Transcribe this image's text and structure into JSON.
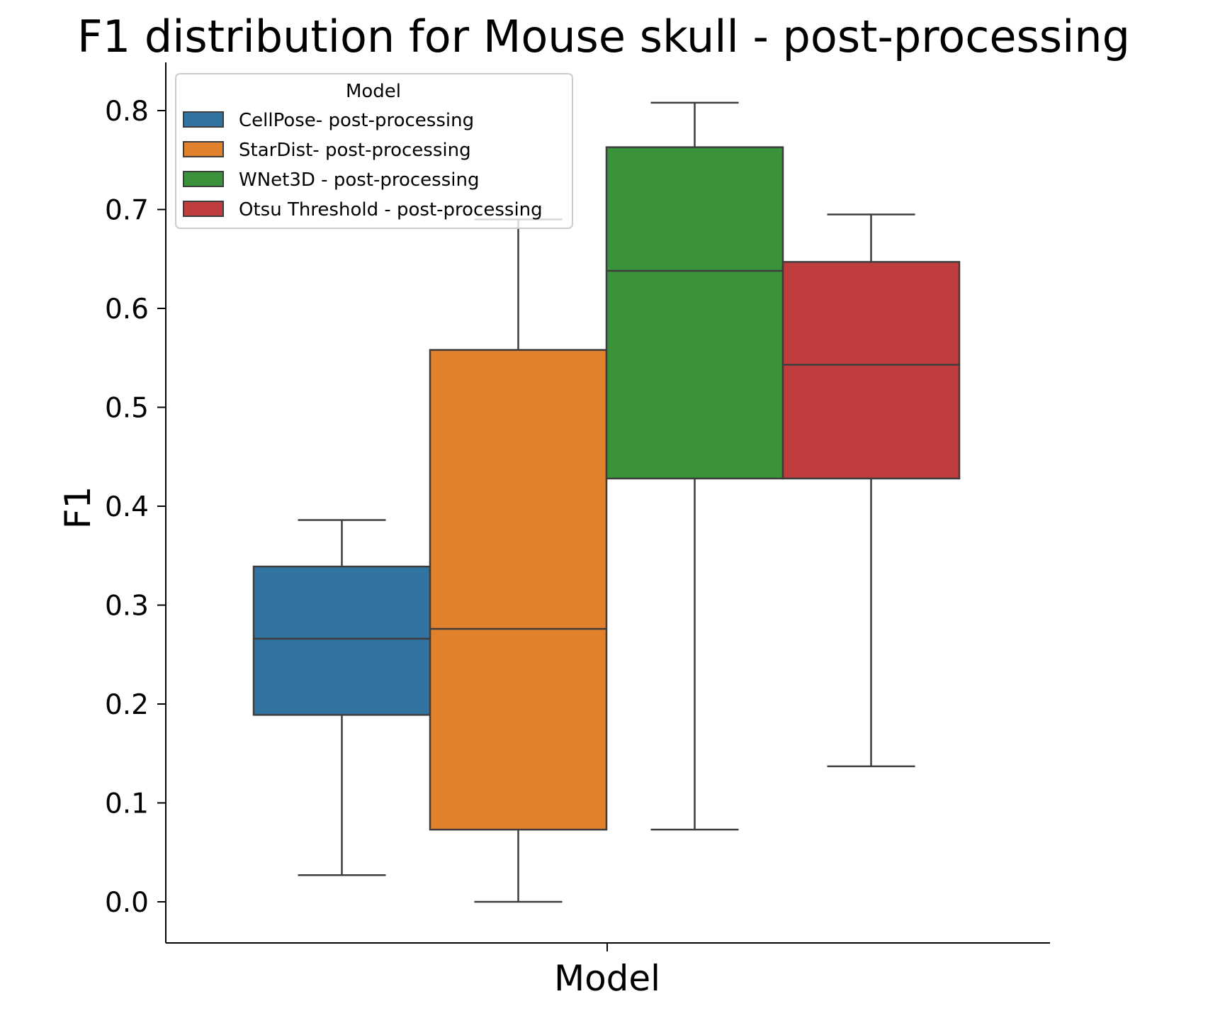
{
  "chart_data": {
    "type": "box",
    "title": "F1 distribution for Mouse skull - post-processing",
    "xlabel": "Model",
    "ylabel": "F1",
    "ylim": [
      -0.04,
      0.85
    ],
    "yticks": [
      0.0,
      0.1,
      0.2,
      0.3,
      0.4,
      0.5,
      0.6,
      0.7,
      0.8
    ],
    "ytick_labels": [
      "0.0",
      "0.1",
      "0.2",
      "0.3",
      "0.4",
      "0.5",
      "0.6",
      "0.7",
      "0.8"
    ],
    "grid": false,
    "legend": {
      "title": "Model",
      "placement": "top-left"
    },
    "series": [
      {
        "name": "CellPose- post-processing",
        "color": "#3274a1",
        "whisker_low": 0.027,
        "q1": 0.189,
        "median": 0.266,
        "q3": 0.339,
        "whisker_high": 0.386
      },
      {
        "name": "StarDist- post-processing",
        "color": "#e1812c",
        "whisker_low": 0.0,
        "q1": 0.073,
        "median": 0.276,
        "q3": 0.558,
        "whisker_high": 0.69
      },
      {
        "name": "WNet3D - post-processing",
        "color": "#3a923a",
        "whisker_low": 0.073,
        "q1": 0.428,
        "median": 0.638,
        "q3": 0.763,
        "whisker_high": 0.808
      },
      {
        "name": "Otsu Threshold - post-processing",
        "color": "#c03d3e",
        "whisker_low": 0.137,
        "q1": 0.428,
        "median": 0.543,
        "q3": 0.647,
        "whisker_high": 0.695
      }
    ],
    "line_color": "#3d3d3d"
  }
}
